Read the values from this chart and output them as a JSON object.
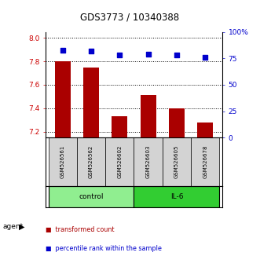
{
  "title": "GDS3773 / 10340388",
  "samples": [
    "GSM526561",
    "GSM526562",
    "GSM526602",
    "GSM526603",
    "GSM526605",
    "GSM526678"
  ],
  "transformed_counts": [
    7.8,
    7.75,
    7.33,
    7.51,
    7.4,
    7.28
  ],
  "percentile_ranks": [
    83,
    82,
    78,
    79,
    78,
    76
  ],
  "ylim_left": [
    7.15,
    8.05
  ],
  "ylim_right": [
    0,
    100
  ],
  "yticks_left": [
    7.2,
    7.4,
    7.6,
    7.8,
    8.0
  ],
  "yticks_right": [
    0,
    25,
    50,
    75,
    100
  ],
  "ytick_labels_right": [
    "0",
    "25",
    "50",
    "75",
    "100%"
  ],
  "bar_color": "#AA0000",
  "dot_color": "#0000CC",
  "bar_width": 0.55,
  "group_info": [
    {
      "start": 0,
      "end": 2,
      "label": "control",
      "color": "#90EE90"
    },
    {
      "start": 3,
      "end": 5,
      "label": "IL-6",
      "color": "#32CD32"
    }
  ],
  "legend_items": [
    {
      "color": "#AA0000",
      "label": "transformed count"
    },
    {
      "color": "#0000CC",
      "label": "percentile rank within the sample"
    }
  ]
}
